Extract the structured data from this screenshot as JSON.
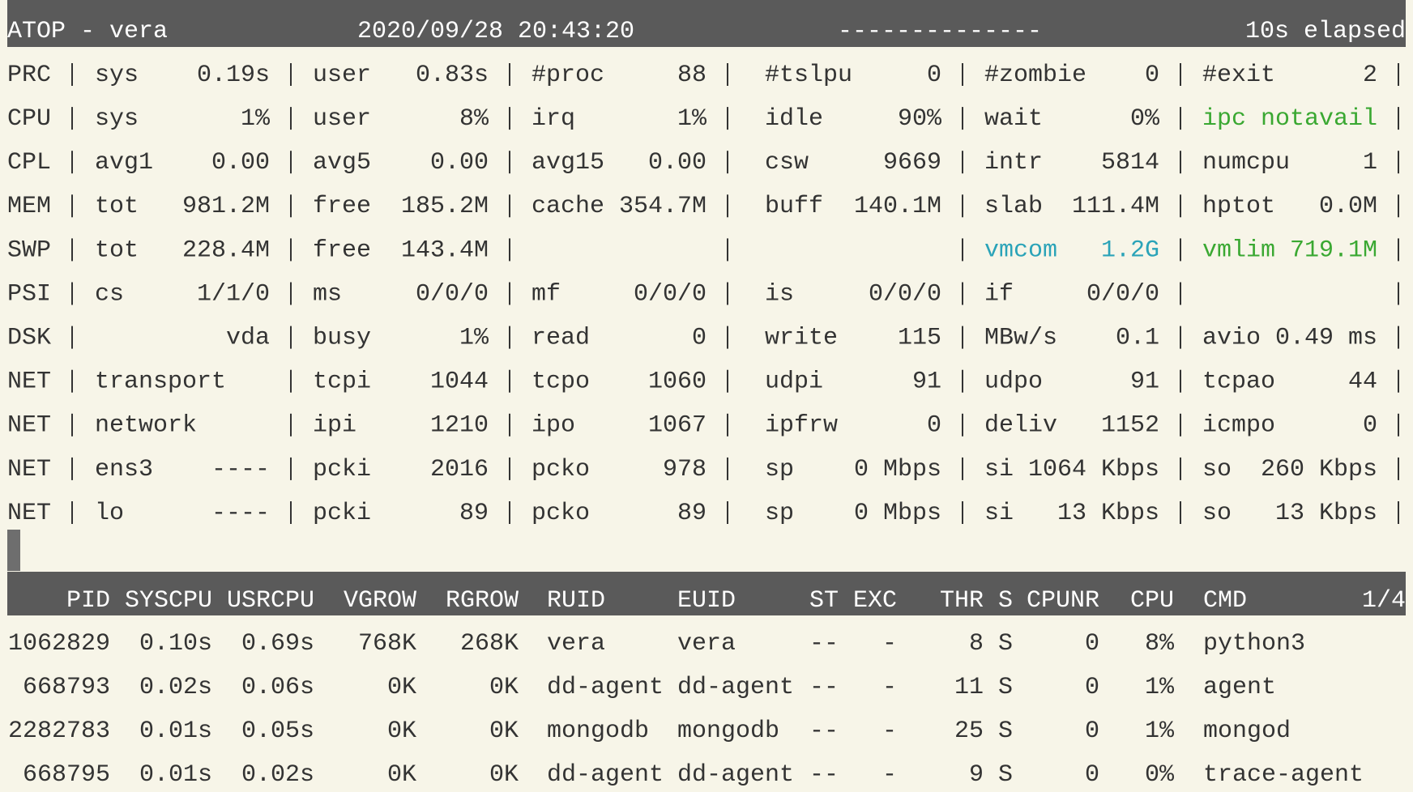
{
  "header": {
    "host": "ATOP - vera",
    "datetime": "2020/09/28  20:43:20",
    "dashes": "--------------",
    "elapsed": "10s elapsed"
  },
  "system": {
    "rows": [
      {
        "label": "PRC",
        "cells": [
          {
            "key": "sys",
            "value": "0.19s"
          },
          {
            "key": "user",
            "value": "0.83s"
          },
          {
            "key": "#proc",
            "value": "88"
          },
          {
            "key": "#tslpu",
            "value": "0"
          },
          {
            "key": "#zombie",
            "value": "0"
          },
          {
            "key": "#exit",
            "value": "2"
          }
        ]
      },
      {
        "label": "CPU",
        "cells": [
          {
            "key": "sys",
            "value": "1%"
          },
          {
            "key": "user",
            "value": "8%"
          },
          {
            "key": "irq",
            "value": "1%"
          },
          {
            "key": "idle",
            "value": "90%"
          },
          {
            "key": "wait",
            "value": "0%"
          },
          {
            "key": "ipc notavail",
            "color": "#3aa832"
          }
        ]
      },
      {
        "label": "CPL",
        "cells": [
          {
            "key": "avg1",
            "value": "0.00"
          },
          {
            "key": "avg5",
            "value": "0.00"
          },
          {
            "key": "avg15",
            "value": "0.00"
          },
          {
            "key": "csw",
            "value": "9669"
          },
          {
            "key": "intr",
            "value": "5814"
          },
          {
            "key": "numcpu",
            "value": "1"
          }
        ]
      },
      {
        "label": "MEM",
        "cells": [
          {
            "key": "tot",
            "value": "981.2M"
          },
          {
            "key": "free",
            "value": "185.2M"
          },
          {
            "key": "cache",
            "value": "354.7M"
          },
          {
            "key": "buff",
            "value": "140.1M"
          },
          {
            "key": "slab",
            "value": "111.4M"
          },
          {
            "key": "hptot",
            "value": "0.0M"
          }
        ]
      },
      {
        "label": "SWP",
        "cells": [
          {
            "key": "tot",
            "value": "228.4M"
          },
          {
            "key": "free",
            "value": "143.4M"
          },
          {},
          {},
          {
            "key": "vmcom",
            "value": "1.2G",
            "color": "#2aa3b8"
          },
          {
            "key": "vmlim",
            "value": "719.1M",
            "color": "#3aa832"
          }
        ]
      },
      {
        "label": "PSI",
        "cells": [
          {
            "key": "cs",
            "value": "1/1/0"
          },
          {
            "key": "ms",
            "value": "0/0/0"
          },
          {
            "key": "mf",
            "value": "0/0/0"
          },
          {
            "key": "is",
            "value": "0/0/0"
          },
          {
            "key": "if",
            "value": "0/0/0"
          },
          {}
        ]
      },
      {
        "label": "DSK",
        "cells": [
          {
            "value": "vda"
          },
          {
            "key": "busy",
            "value": "1%"
          },
          {
            "key": "read",
            "value": "0"
          },
          {
            "key": "write",
            "value": "115"
          },
          {
            "key": "MBw/s",
            "value": "0.1"
          },
          {
            "key": "avio",
            "value": "0.49 ms"
          }
        ]
      },
      {
        "label": "NET",
        "cells": [
          {
            "key": "transport"
          },
          {
            "key": "tcpi",
            "value": "1044"
          },
          {
            "key": "tcpo",
            "value": "1060"
          },
          {
            "key": "udpi",
            "value": "91"
          },
          {
            "key": "udpo",
            "value": "91"
          },
          {
            "key": "tcpao",
            "value": "44"
          }
        ]
      },
      {
        "label": "NET",
        "cells": [
          {
            "key": "network"
          },
          {
            "key": "ipi",
            "value": "1210"
          },
          {
            "key": "ipo",
            "value": "1067"
          },
          {
            "key": "ipfrw",
            "value": "0"
          },
          {
            "key": "deliv",
            "value": "1152"
          },
          {
            "key": "icmpo",
            "value": "0"
          }
        ]
      },
      {
        "label": "NET",
        "cells": [
          {
            "key": "ens3",
            "value": "----"
          },
          {
            "key": "pcki",
            "value": "2016"
          },
          {
            "key": "pcko",
            "value": "978"
          },
          {
            "key": "sp",
            "value": "0 Mbps"
          },
          {
            "key": "si",
            "value": "1064 Kbps"
          },
          {
            "key": "so",
            "value": "260 Kbps"
          }
        ]
      },
      {
        "label": "NET",
        "cells": [
          {
            "key": "lo",
            "value": "----"
          },
          {
            "key": "pcki",
            "value": "89"
          },
          {
            "key": "pcko",
            "value": "89"
          },
          {
            "key": "sp",
            "value": "0 Mbps"
          },
          {
            "key": "si",
            "value": "13 Kbps"
          },
          {
            "key": "so",
            "value": "13 Kbps"
          }
        ]
      }
    ]
  },
  "processes": {
    "columns": [
      "PID",
      "SYSCPU",
      "USRCPU",
      "VGROW",
      "RGROW",
      "RUID",
      "EUID",
      "ST",
      "EXC",
      "THR",
      "S",
      "CPUNR",
      "CPU",
      "CMD"
    ],
    "page": "1/4",
    "rows": [
      [
        "1062829",
        "0.10s",
        "0.69s",
        "768K",
        "268K",
        "vera",
        "vera",
        "--",
        "-",
        "8",
        "S",
        "0",
        "8%",
        "python3"
      ],
      [
        "668793",
        "0.02s",
        "0.06s",
        "0K",
        "0K",
        "dd-agent",
        "dd-agent",
        "--",
        "-",
        "11",
        "S",
        "0",
        "1%",
        "agent"
      ],
      [
        "2282783",
        "0.01s",
        "0.05s",
        "0K",
        "0K",
        "mongodb",
        "mongodb",
        "--",
        "-",
        "25",
        "S",
        "0",
        "1%",
        "mongod"
      ],
      [
        "668795",
        "0.01s",
        "0.02s",
        "0K",
        "0K",
        "dd-agent",
        "dd-agent",
        "--",
        "-",
        "9",
        "S",
        "0",
        "0%",
        "trace-agent"
      ]
    ]
  }
}
